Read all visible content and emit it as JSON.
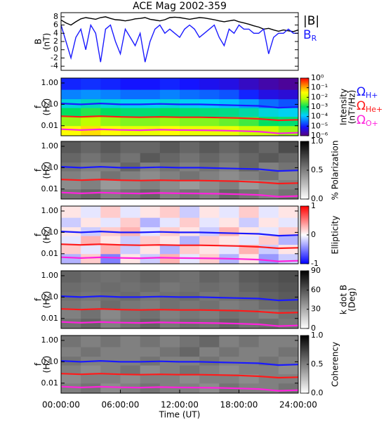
{
  "chart_data": [
    {
      "type": "line",
      "title": "ACE Mag 2002-359",
      "ylabel_lines": [
        "B",
        "(nT)"
      ],
      "xlim": [
        0,
        24
      ],
      "ylim": [
        -5,
        9
      ],
      "yticks": [
        -4,
        -2,
        0,
        2,
        4,
        6,
        8
      ],
      "x": [
        0,
        0.5,
        1,
        1.5,
        2,
        2.5,
        3,
        3.5,
        4,
        4.5,
        5,
        5.5,
        6,
        6.5,
        7,
        7.5,
        8,
        8.5,
        9,
        9.5,
        10,
        10.5,
        11,
        11.5,
        12,
        12.5,
        13,
        13.5,
        14,
        14.5,
        15,
        15.5,
        16,
        16.5,
        17,
        17.5,
        18,
        18.5,
        19,
        19.5,
        20,
        20.5,
        21,
        21.5,
        22,
        22.5,
        23,
        23.5,
        24
      ],
      "series": [
        {
          "name": "|B|",
          "color": "#000000",
          "values": [
            7.2,
            6.5,
            6.0,
            6.8,
            7.5,
            7.8,
            7.6,
            7.4,
            7.8,
            8.0,
            7.6,
            7.3,
            7.2,
            7.0,
            7.2,
            7.5,
            7.6,
            7.8,
            7.4,
            7.2,
            7.0,
            7.3,
            7.8,
            7.9,
            7.8,
            7.6,
            7.4,
            7.6,
            7.8,
            7.7,
            7.5,
            7.3,
            7.0,
            6.8,
            7.0,
            7.2,
            6.8,
            6.5,
            6.2,
            5.8,
            5.5,
            5.0,
            5.2,
            4.8,
            4.5,
            4.8,
            4.6,
            4.4,
            4.8
          ]
        },
        {
          "name": "B",
          "sub": "R",
          "color": "#1a1aff",
          "values": [
            6,
            2,
            -2,
            3,
            5,
            0,
            6,
            4,
            -3,
            5,
            6,
            2,
            -1,
            5,
            3,
            1,
            4,
            -3,
            2,
            5,
            6,
            4,
            5,
            4,
            3,
            5,
            6,
            5,
            3,
            4,
            5,
            6,
            3,
            1,
            5,
            4,
            6,
            5,
            5,
            4,
            4,
            5,
            -1,
            3,
            4,
            4,
            5,
            4,
            4
          ]
        }
      ]
    },
    {
      "type": "heatmap",
      "ylabel_lines": [
        "f",
        "(Hz)"
      ],
      "xlim": [
        0,
        24
      ],
      "ylim": [
        0.0034,
        1.7
      ],
      "log_y": true,
      "yticks": [
        0.01,
        {
          "value": 0.1,
          "label": "0.10"
        },
        {
          "value": 1,
          "label": "1.00"
        }
      ],
      "x_edges": [
        0,
        2,
        4,
        6,
        8,
        10,
        12,
        14,
        16,
        18,
        20,
        22,
        24
      ],
      "y_edges": [
        0.0034,
        0.01,
        0.027,
        0.07,
        0.18,
        0.5,
        1.7
      ],
      "z": [
        [
          0.03,
          0.05,
          0.03,
          0.02,
          0.02,
          0.03,
          0.02,
          0.02,
          0.02,
          0.01,
          0.01,
          0.005
        ],
        [
          0.005,
          0.008,
          0.005,
          0.004,
          0.004,
          0.005,
          0.004,
          0.004,
          0.003,
          0.002,
          0.001,
          0.0008
        ],
        [
          0.001,
          0.0015,
          0.001,
          0.0008,
          0.0008,
          0.001,
          0.0008,
          0.0007,
          0.0006,
          0.0004,
          0.0002,
          0.00015
        ],
        [
          0.0002,
          0.0003,
          0.0002,
          0.00015,
          0.00015,
          0.0002,
          0.00015,
          0.00012,
          0.0001,
          6e-05,
          3e-05,
          2e-05
        ],
        [
          4e-05,
          5e-05,
          4e-05,
          3e-05,
          3e-05,
          4e-05,
          3e-05,
          2.5e-05,
          2e-05,
          1e-05,
          5e-06,
          4e-06
        ],
        [
          1e-05,
          1.2e-05,
          1e-05,
          8e-06,
          8e-06,
          1e-05,
          8e-06,
          6e-06,
          5e-06,
          3e-06,
          2e-06,
          1.5e-06
        ]
      ],
      "colorbar": {
        "label_lines": [
          "Intensity",
          "(nT²/Hz)"
        ],
        "clim": [
          1e-06,
          1
        ],
        "log": true,
        "colormap": "rainbow",
        "ticks": [
          {
            "value": 1,
            "label": "10⁰"
          },
          {
            "value": 0.1,
            "label": "10⁻¹"
          },
          {
            "value": 0.01,
            "label": "10⁻²"
          },
          {
            "value": 0.001,
            "label": "10⁻³"
          },
          {
            "value": 0.0001,
            "label": "10⁻⁴"
          },
          {
            "value": 1e-05,
            "label": "10⁻⁵"
          },
          {
            "value": 1e-06,
            "label": "10⁻⁶"
          }
        ]
      },
      "show_gyro_legend": true
    },
    {
      "type": "heatmap",
      "ylabel_lines": [
        "f",
        "(Hz)"
      ],
      "xlim": [
        0,
        24
      ],
      "ylim": [
        0.0034,
        1.7
      ],
      "log_y": true,
      "yticks": [
        0.01,
        {
          "value": 0.1,
          "label": "0.10"
        },
        {
          "value": 1,
          "label": "1.00"
        }
      ],
      "x_edges": [
        0,
        2,
        4,
        6,
        8,
        10,
        12,
        14,
        16,
        18,
        20,
        22,
        24
      ],
      "y_edges": [
        0.0034,
        0.01,
        0.027,
        0.07,
        0.18,
        0.5,
        1.7
      ],
      "z": [
        [
          0.55,
          0.6,
          0.5,
          0.55,
          0.6,
          0.5,
          0.55,
          0.5,
          0.6,
          0.55,
          0.5,
          0.55
        ],
        [
          0.45,
          0.5,
          0.4,
          0.45,
          0.5,
          0.45,
          0.4,
          0.45,
          0.5,
          0.4,
          0.45,
          0.5
        ],
        [
          0.5,
          0.45,
          0.55,
          0.5,
          0.45,
          0.5,
          0.55,
          0.5,
          0.45,
          0.5,
          0.55,
          0.45
        ],
        [
          0.55,
          0.5,
          0.5,
          0.6,
          0.5,
          0.55,
          0.5,
          0.55,
          0.5,
          0.6,
          0.5,
          0.55
        ],
        [
          0.6,
          0.55,
          0.6,
          0.55,
          0.65,
          0.6,
          0.55,
          0.6,
          0.55,
          0.6,
          0.65,
          0.6
        ],
        [
          0.65,
          0.6,
          0.65,
          0.6,
          0.6,
          0.65,
          0.6,
          0.65,
          0.6,
          0.65,
          0.6,
          0.7
        ]
      ],
      "colorbar": {
        "label_lines": [
          "% Polarization"
        ],
        "clim": [
          0,
          1
        ],
        "colormap": "gray",
        "ticks": [
          {
            "value": 0,
            "label": "0.0"
          },
          0.5,
          {
            "value": 1,
            "label": "1.0"
          }
        ]
      }
    },
    {
      "type": "heatmap",
      "ylabel_lines": [
        "f",
        "(Hz)"
      ],
      "xlim": [
        0,
        24
      ],
      "ylim": [
        0.0034,
        1.7
      ],
      "log_y": true,
      "yticks": [
        0.01,
        {
          "value": 0.1,
          "label": "0.10"
        },
        {
          "value": 1,
          "label": "1.00"
        }
      ],
      "x_edges": [
        0,
        2,
        4,
        6,
        8,
        10,
        12,
        14,
        16,
        18,
        20,
        22,
        24
      ],
      "y_edges": [
        0.0034,
        0.01,
        0.027,
        0.07,
        0.18,
        0.5,
        1.7
      ],
      "z": [
        [
          -0.3,
          0.2,
          -0.5,
          0.1,
          -0.2,
          0.3,
          -0.1,
          0.2,
          -0.3,
          0.1,
          -0.4,
          -0.2
        ],
        [
          0.2,
          -0.1,
          0.3,
          -0.2,
          0.1,
          -0.3,
          0.2,
          0.1,
          -0.1,
          0.3,
          -0.2,
          0.1
        ],
        [
          -0.1,
          0.3,
          0.1,
          -0.2,
          0.2,
          0.1,
          -0.3,
          0.2,
          0.1,
          -0.1,
          0.2,
          -0.3
        ],
        [
          0.1,
          -0.2,
          0.2,
          0.3,
          -0.1,
          0.2,
          0.1,
          -0.2,
          0.3,
          0.1,
          -0.1,
          0.2
        ],
        [
          -0.2,
          0.1,
          -0.1,
          0.2,
          -0.3,
          -0.1,
          0.2,
          -0.1,
          0.1,
          -0.2,
          0.1,
          -0.1
        ],
        [
          0.1,
          -0.1,
          0.2,
          -0.1,
          0.1,
          0.2,
          -0.2,
          0.1,
          -0.1,
          0.2,
          -0.1,
          0.1
        ]
      ],
      "colorbar": {
        "label_lines": [
          "Ellipticity"
        ],
        "clim": [
          -1,
          1
        ],
        "colormap": "bwr",
        "ticks": [
          -1,
          0,
          1
        ]
      }
    },
    {
      "type": "heatmap",
      "ylabel_lines": [
        "f",
        "(Hz)"
      ],
      "xlim": [
        0,
        24
      ],
      "ylim": [
        0.0034,
        1.7
      ],
      "log_y": true,
      "yticks": [
        0.01,
        {
          "value": 0.1,
          "label": "0.10"
        },
        {
          "value": 1,
          "label": "1.00"
        }
      ],
      "x_edges": [
        0,
        2,
        4,
        6,
        8,
        10,
        12,
        14,
        16,
        18,
        20,
        22,
        24
      ],
      "y_edges": [
        0.0034,
        0.01,
        0.027,
        0.07,
        0.18,
        0.5,
        1.7
      ],
      "z": [
        [
          50,
          55,
          45,
          50,
          55,
          48,
          52,
          50,
          55,
          50,
          52,
          48
        ],
        [
          45,
          50,
          42,
          48,
          50,
          45,
          48,
          46,
          50,
          48,
          45,
          50
        ],
        [
          48,
          45,
          52,
          48,
          46,
          50,
          48,
          50,
          46,
          48,
          52,
          55
        ],
        [
          50,
          48,
          50,
          52,
          48,
          50,
          52,
          48,
          50,
          52,
          55,
          58
        ],
        [
          52,
          50,
          52,
          50,
          52,
          48,
          50,
          52,
          50,
          55,
          58,
          60
        ],
        [
          55,
          52,
          50,
          52,
          55,
          52,
          50,
          55,
          52,
          58,
          60,
          62
        ]
      ],
      "colorbar": {
        "label_lines": [
          "k dot B",
          "(Deg)"
        ],
        "clim": [
          0,
          90
        ],
        "colormap": "gray",
        "ticks": [
          0,
          30,
          60,
          90
        ]
      }
    },
    {
      "type": "heatmap",
      "ylabel_lines": [
        "f",
        "(Hz)"
      ],
      "xlim": [
        0,
        24
      ],
      "ylim": [
        0.0034,
        1.7
      ],
      "log_y": true,
      "yticks": [
        0.01,
        {
          "value": 0.1,
          "label": "0.10"
        },
        {
          "value": 1,
          "label": "1.00"
        }
      ],
      "x_edges": [
        0,
        2,
        4,
        6,
        8,
        10,
        12,
        14,
        16,
        18,
        20,
        22,
        24
      ],
      "y_edges": [
        0.0034,
        0.01,
        0.027,
        0.07,
        0.18,
        0.5,
        1.7
      ],
      "z": [
        [
          0.5,
          0.55,
          0.45,
          0.5,
          0.55,
          0.5,
          0.5,
          0.45,
          0.55,
          0.5,
          0.5,
          0.55
        ],
        [
          0.45,
          0.5,
          0.5,
          0.45,
          0.5,
          0.5,
          0.45,
          0.5,
          0.5,
          0.45,
          0.5,
          0.5
        ],
        [
          0.5,
          0.45,
          0.5,
          0.55,
          0.45,
          0.5,
          0.55,
          0.5,
          0.45,
          0.5,
          0.5,
          0.45
        ],
        [
          0.55,
          0.5,
          0.5,
          0.5,
          0.55,
          0.5,
          0.5,
          0.55,
          0.5,
          0.5,
          0.55,
          0.5
        ],
        [
          0.5,
          0.55,
          0.5,
          0.5,
          0.5,
          0.55,
          0.6,
          0.5,
          0.55,
          0.5,
          0.5,
          0.55
        ],
        [
          0.55,
          0.5,
          0.55,
          0.5,
          0.55,
          0.5,
          0.55,
          0.6,
          0.5,
          0.55,
          0.5,
          0.5
        ]
      ],
      "colorbar": {
        "label_lines": [
          "Coherency"
        ],
        "clim": [
          0,
          1
        ],
        "colormap": "gray",
        "ticks": [
          {
            "value": 0,
            "label": "0.0"
          },
          0.5,
          {
            "value": 1,
            "label": "1.0"
          }
        ]
      },
      "xlabel": "Time (UT)",
      "xticks": [
        {
          "value": 0,
          "label": "00:00:00"
        },
        {
          "value": 6,
          "label": "06:00:00"
        },
        {
          "value": 12,
          "label": "12:00:00"
        },
        {
          "value": 18,
          "label": "18:00:00"
        },
        {
          "value": 24,
          "label": "24:00:00"
        }
      ]
    }
  ],
  "gyrofrequencies": {
    "x": [
      0,
      2,
      4,
      6,
      8,
      10,
      12,
      14,
      16,
      18,
      20,
      22,
      24
    ],
    "series": [
      {
        "symbol": "Ω",
        "sub": "H+",
        "color": "#1a1aff",
        "values": [
          0.11,
          0.1,
          0.11,
          0.1,
          0.1,
          0.105,
          0.1,
          0.1,
          0.095,
          0.09,
          0.085,
          0.07,
          0.075
        ]
      },
      {
        "symbol": "Ω",
        "sub": "He+",
        "color": "#ff1a1a",
        "values": [
          0.028,
          0.026,
          0.028,
          0.026,
          0.025,
          0.026,
          0.025,
          0.025,
          0.024,
          0.023,
          0.021,
          0.018,
          0.019
        ]
      },
      {
        "symbol": "Ω",
        "sub": "O+",
        "color": "#ff22dd",
        "values": [
          0.0069,
          0.0063,
          0.0068,
          0.0064,
          0.0062,
          0.0065,
          0.0063,
          0.0062,
          0.006,
          0.0057,
          0.0053,
          0.0044,
          0.0047
        ]
      }
    ]
  }
}
